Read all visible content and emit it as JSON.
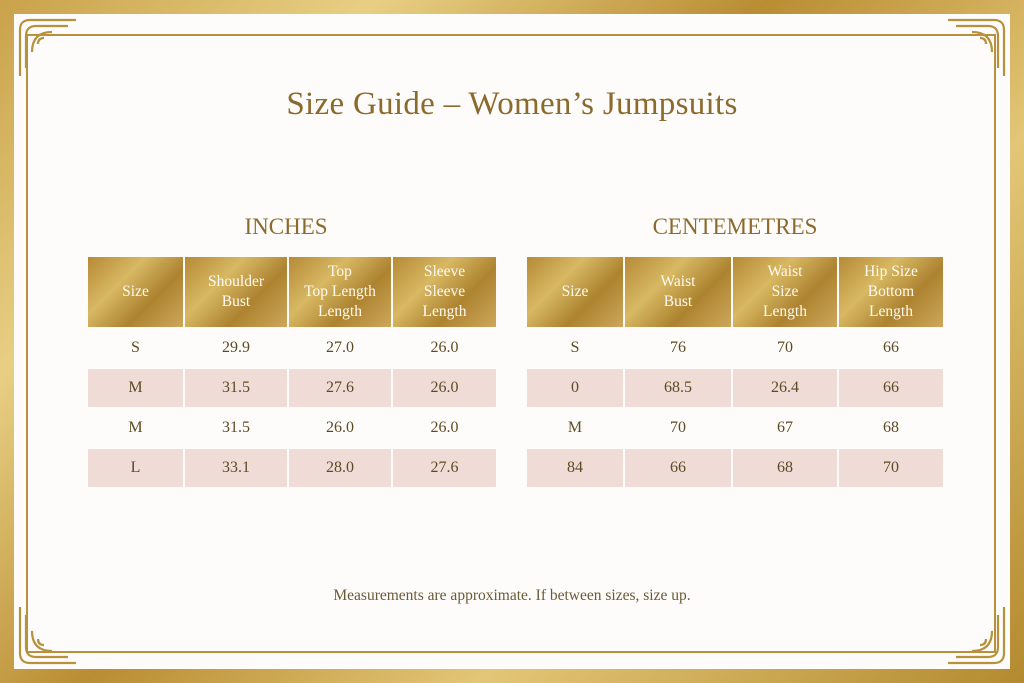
{
  "title": "Size Guide – Women’s Jumpsuits",
  "inches": {
    "heading": "INCHES",
    "headers": [
      [
        "Size"
      ],
      [
        "Shoulder",
        "Bust"
      ],
      [
        "Top",
        "Top Length",
        "Length"
      ],
      [
        "Sleeve",
        "Sleeve",
        "Length"
      ]
    ],
    "rows": [
      [
        "S",
        "29.9",
        "27.0",
        "26.0"
      ],
      [
        "M",
        "31.5",
        "27.6",
        "26.0"
      ],
      [
        "M",
        "31.5",
        "26.0",
        "26.0"
      ],
      [
        "L",
        "33.1",
        "28.0",
        "27.6"
      ]
    ]
  },
  "centimetres": {
    "heading": "CENTEMETRES",
    "headers": [
      [
        "Size"
      ],
      [
        "Waist",
        "Bust"
      ],
      [
        "Waist",
        "Size",
        "Length"
      ],
      [
        "Hip Size",
        "Bottom",
        "Length"
      ]
    ],
    "rows": [
      [
        "S",
        "76",
        "70",
        "66"
      ],
      [
        "0",
        "68.5",
        "26.4",
        "66"
      ],
      [
        "M",
        "70",
        "67",
        "68"
      ],
      [
        "84",
        "66",
        "68",
        "70"
      ]
    ]
  },
  "note": "Measurements are approximate. If between sizes, size up.",
  "colors": {
    "gold": "#b8913d",
    "text_gold": "#8b6a2b",
    "row_tint": "#efdcd6",
    "card": "#fdfcfa"
  }
}
